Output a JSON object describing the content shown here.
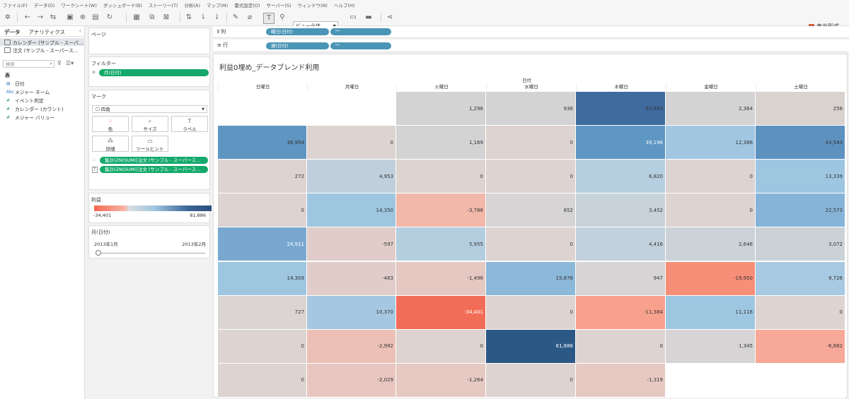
{
  "menu": [
    "ファイル(F)",
    "データ(D)",
    "ワークシート(W)",
    "ダッシュボード(B)",
    "ストーリー(T)",
    "分析(A)",
    "マップ(M)",
    "書式設定(O)",
    "サーバー(S)",
    "ウィンドウ(N)",
    "ヘルプ(H)"
  ],
  "toolbar": {
    "view_select": "ビュー全体",
    "show_me": "表示形式"
  },
  "data_pane": {
    "tabs": [
      "データ",
      "アナリティクス"
    ],
    "datasources": [
      "カレンダー (サンプル - スーパ...",
      "注文 (サンプル - スーパース..."
    ],
    "search_placeholder": "検索",
    "section_label": "表",
    "fields": [
      {
        "type": "date",
        "label": "日付"
      },
      {
        "type": "Abc",
        "label": "メジャー ネーム"
      },
      {
        "type": "#",
        "label": "イベント判定"
      },
      {
        "type": "#",
        "label": "カレンダー (カウント)"
      },
      {
        "type": "#",
        "label": "メジャー バリュー"
      }
    ]
  },
  "pages_card": {
    "title": "ページ"
  },
  "filters_card": {
    "title": "フィルター",
    "pill": "月(日付)"
  },
  "marks_card": {
    "title": "マーク",
    "mark_type": "四角",
    "buttons": [
      "色",
      "サイズ",
      "ラベル",
      "詳細",
      "ツールヒント"
    ],
    "pills": [
      "集計(ZN(SUM([注文 (サンプル - スーパース...",
      "集計(ZN(SUM([注文 (サンプル - スーパース..."
    ]
  },
  "legend": {
    "title": "利益",
    "min": "-34,401",
    "max": "81,886"
  },
  "month_filter": {
    "title": "月(日付)",
    "start": "2013年1月",
    "end": "2013年2月"
  },
  "shelves": {
    "columns_label": "列",
    "rows_label": "行",
    "column_pills": [
      "曜日(日付)",
      "\"\""
    ],
    "row_pills": [
      "週(日付)",
      "\"\""
    ]
  },
  "viz": {
    "title": "利益0埋め_データブレンド利用",
    "column_header_title": "日付",
    "days": [
      "日曜日",
      "月曜日",
      "火曜日",
      "水曜日",
      "木曜日",
      "金曜日",
      "土曜日"
    ],
    "rows": [
      [
        null,
        null,
        "1,296",
        "936",
        "67,893",
        "2,364",
        "256"
      ],
      [
        "36,954",
        "0",
        "1,169",
        "0",
        "39,196",
        "12,386",
        "43,543"
      ],
      [
        "272",
        "4,953",
        "0",
        "0",
        "6,820",
        "0",
        "13,339"
      ],
      [
        "0",
        "14,350",
        "-3,788",
        "852",
        "3,452",
        "0",
        "22,573"
      ],
      [
        "24,911",
        "-597",
        "5,955",
        "0",
        "4,416",
        "2,646",
        "3,072"
      ],
      [
        "14,309",
        "-483",
        "-1,496",
        "15,876",
        "947",
        "-19,950",
        "9,726"
      ],
      [
        "727",
        "10,370",
        "-34,401",
        "0",
        "-11,384",
        "11,116",
        "0"
      ],
      [
        "0",
        "-2,992",
        "0",
        "81,886",
        "0",
        "1,345",
        "-6,882"
      ],
      [
        "0",
        "-2,029",
        "-1,264",
        "0",
        "-1,319",
        null,
        null
      ]
    ],
    "colors": [
      [
        "#ffffff",
        "#ffffff",
        "#d3d3d4",
        "#d3d3d4",
        "#3f6b9e",
        "#d3d3d4",
        "#d9d2cf"
      ],
      [
        "#5f96c1",
        "#ddd3d0",
        "#d3d3d4",
        "#ddd3d0",
        "#5e97c4",
        "#a1c6e2",
        "#5d92c0"
      ],
      [
        "#ddd3d0",
        "#bfcfdb",
        "#ddd3d0",
        "#ddd3d0",
        "#b6cfe0",
        "#ddd3d0",
        "#9ec6e1"
      ],
      [
        "#ddd3d0",
        "#9ec6e1",
        "#f2b8aa",
        "#d6d4d4",
        "#c8d2d9",
        "#ddd3d0",
        "#86b4d8"
      ],
      [
        "#78a8d0",
        "#e0cdc9",
        "#b4cee0",
        "#ddd3d0",
        "#c3d1dc",
        "#cbd2d8",
        "#cad2d8"
      ],
      [
        "#9ec6e1",
        "#e0cdc9",
        "#e5c8c2",
        "#8cb8da",
        "#d6d4d4",
        "#f78e78",
        "#a8c9e2"
      ],
      [
        "#dad4d2",
        "#a6c7e1",
        "#f26d58",
        "#ddd3d0",
        "#f8a28e",
        "#9ec6e1",
        "#ddd3d0"
      ],
      [
        "#ddd3d0",
        "#ecc0b6",
        "#ddd3d0",
        "#2c5885",
        "#ddd3d0",
        "#d6d4d4",
        "#f8a898"
      ],
      [
        "#ddd3d0",
        "#e8c6bf",
        "#e6c9c3",
        "#ddd3d0",
        "#e6c9c3",
        "#ffffff",
        "#ffffff"
      ]
    ],
    "light_text": [
      [
        4,
        0
      ],
      [
        1,
        4
      ],
      [
        6,
        2
      ],
      [
        7,
        3
      ]
    ]
  }
}
